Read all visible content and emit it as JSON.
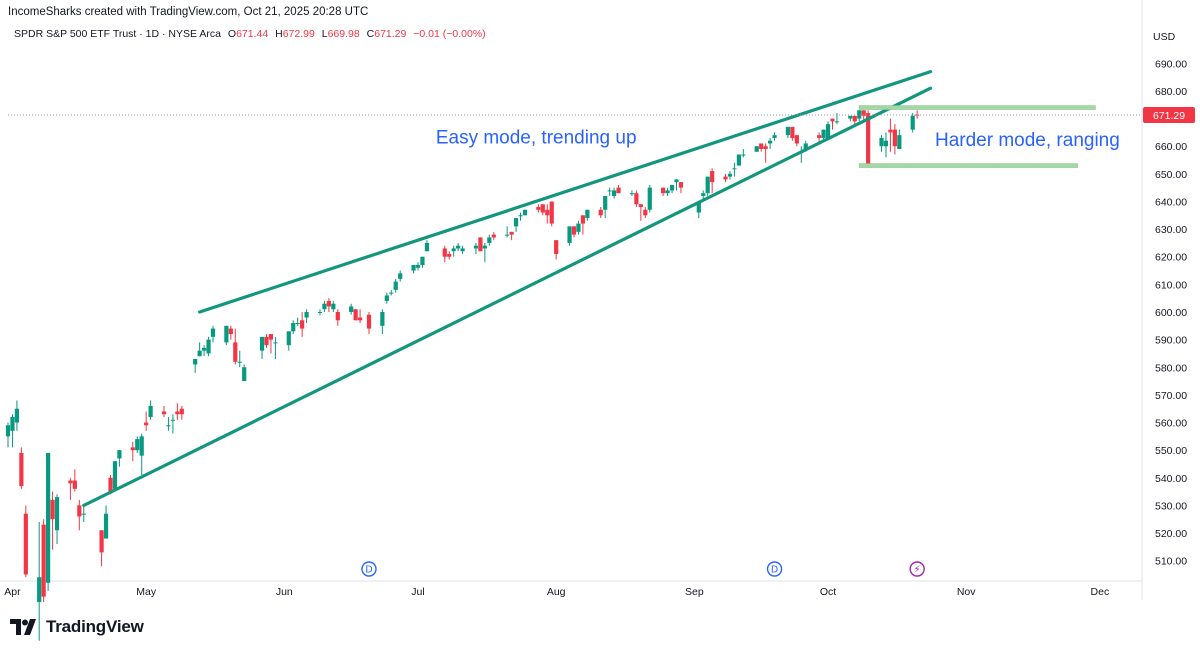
{
  "header": {
    "attribution": "IncomeSharks created with TradingView.com, Oct 21, 2025 20:28 UTC"
  },
  "legend": {
    "symbol": "SPDR S&P 500 ETF Trust · 1D · NYSE Arca",
    "open_label": "O",
    "open": "671.44",
    "high_label": "H",
    "high": "672.99",
    "low_label": "L",
    "low": "669.98",
    "close_label": "C",
    "close": "671.29",
    "change": "−0.01 (−0.00%)"
  },
  "currency": "USD",
  "footer": {
    "brand": "TradingView"
  },
  "colors": {
    "up": "#089981",
    "down": "#f23645",
    "trend": "#12967d",
    "range": "#a5d6a7",
    "annotation": "#2962ff",
    "price_tag": "#f23645"
  },
  "chart_data": {
    "type": "candlestick",
    "y_axis": {
      "range": [
        503,
        697
      ],
      "ticks": [
        510,
        520,
        530,
        540,
        550,
        560,
        570,
        580,
        590,
        600,
        610,
        620,
        630,
        640,
        650,
        660,
        670,
        680,
        690
      ]
    },
    "x_axis": {
      "range": [
        "2025-03-31",
        "2025-12-10"
      ],
      "labels": [
        {
          "label": "Apr",
          "date": "2025-04-01"
        },
        {
          "label": "May",
          "date": "2025-05-01"
        },
        {
          "label": "Jun",
          "date": "2025-06-01"
        },
        {
          "label": "Jul",
          "date": "2025-07-01"
        },
        {
          "label": "Aug",
          "date": "2025-08-01"
        },
        {
          "label": "Sep",
          "date": "2025-09-01"
        },
        {
          "label": "Oct",
          "date": "2025-10-01"
        },
        {
          "label": "Nov",
          "date": "2025-11-01"
        },
        {
          "label": "Dec",
          "date": "2025-12-01"
        }
      ]
    },
    "last_price": "671.29",
    "candles": [
      {
        "d": "2025-03-31",
        "o": 555,
        "h": 560,
        "l": 551,
        "c": 559
      },
      {
        "d": "2025-04-01",
        "o": 557,
        "h": 563,
        "l": 551,
        "c": 562
      },
      {
        "d": "2025-04-02",
        "o": 560,
        "h": 568,
        "l": 557,
        "c": 565
      },
      {
        "d": "2025-04-03",
        "o": 549,
        "h": 551,
        "l": 536,
        "c": 537
      },
      {
        "d": "2025-04-04",
        "o": 527,
        "h": 530,
        "l": 504,
        "c": 505
      },
      {
        "d": "2025-04-07",
        "o": 495,
        "h": 524,
        "l": 481,
        "c": 504
      },
      {
        "d": "2025-04-08",
        "o": 523,
        "h": 525,
        "l": 495,
        "c": 497
      },
      {
        "d": "2025-04-09",
        "o": 502,
        "h": 549,
        "l": 499,
        "c": 549
      },
      {
        "d": "2025-04-10",
        "o": 532,
        "h": 535,
        "l": 514,
        "c": 525
      },
      {
        "d": "2025-04-11",
        "o": 521,
        "h": 534,
        "l": 516,
        "c": 533
      },
      {
        "d": "2025-04-14",
        "o": 539,
        "h": 540,
        "l": 532,
        "c": 538
      },
      {
        "d": "2025-04-15",
        "o": 539,
        "h": 543,
        "l": 535,
        "c": 536
      },
      {
        "d": "2025-04-16",
        "o": 530,
        "h": 532,
        "l": 521,
        "c": 526
      },
      {
        "d": "2025-04-17",
        "o": 527,
        "h": 530,
        "l": 524,
        "c": 527
      },
      {
        "d": "2025-04-21",
        "o": 521,
        "h": 521,
        "l": 508,
        "c": 513
      },
      {
        "d": "2025-04-22",
        "o": 518,
        "h": 530,
        "l": 518,
        "c": 527
      },
      {
        "d": "2025-04-23",
        "o": 540,
        "h": 541,
        "l": 534,
        "c": 535
      },
      {
        "d": "2025-04-24",
        "o": 536,
        "h": 546,
        "l": 535,
        "c": 546
      },
      {
        "d": "2025-04-25",
        "o": 547,
        "h": 550,
        "l": 544,
        "c": 550
      },
      {
        "d": "2025-04-28",
        "o": 551,
        "h": 553,
        "l": 546,
        "c": 550
      },
      {
        "d": "2025-04-29",
        "o": 550,
        "h": 555,
        "l": 549,
        "c": 554
      },
      {
        "d": "2025-04-30",
        "o": 548,
        "h": 556,
        "l": 541,
        "c": 555
      },
      {
        "d": "2025-05-01",
        "o": 560,
        "h": 564,
        "l": 557,
        "c": 559
      },
      {
        "d": "2025-05-02",
        "o": 562,
        "h": 568,
        "l": 561,
        "c": 566
      },
      {
        "d": "2025-05-05",
        "o": 564,
        "h": 566,
        "l": 562,
        "c": 563
      },
      {
        "d": "2025-05-06",
        "o": 559,
        "h": 562,
        "l": 557,
        "c": 559
      },
      {
        "d": "2025-05-07",
        "o": 561,
        "h": 563,
        "l": 556,
        "c": 561
      },
      {
        "d": "2025-05-08",
        "o": 564,
        "h": 567,
        "l": 561,
        "c": 563
      },
      {
        "d": "2025-05-09",
        "o": 565,
        "h": 566,
        "l": 561,
        "c": 563
      },
      {
        "d": "2025-05-12",
        "o": 581,
        "h": 583,
        "l": 578,
        "c": 583
      },
      {
        "d": "2025-05-13",
        "o": 584,
        "h": 589,
        "l": 584,
        "c": 586
      },
      {
        "d": "2025-05-14",
        "o": 586,
        "h": 588,
        "l": 584,
        "c": 587
      },
      {
        "d": "2025-05-15",
        "o": 585,
        "h": 591,
        "l": 584,
        "c": 590
      },
      {
        "d": "2025-05-16",
        "o": 591,
        "h": 595,
        "l": 589,
        "c": 594
      },
      {
        "d": "2025-05-19",
        "o": 589,
        "h": 595,
        "l": 588,
        "c": 595
      },
      {
        "d": "2025-05-20",
        "o": 594,
        "h": 595,
        "l": 590,
        "c": 592
      },
      {
        "d": "2025-05-21",
        "o": 589,
        "h": 594,
        "l": 581,
        "c": 582
      },
      {
        "d": "2025-05-22",
        "o": 582,
        "h": 586,
        "l": 580,
        "c": 582
      },
      {
        "d": "2025-05-23",
        "o": 575,
        "h": 581,
        "l": 575,
        "c": 580
      },
      {
        "d": "2025-05-27",
        "o": 586,
        "h": 591,
        "l": 583,
        "c": 591
      },
      {
        "d": "2025-05-28",
        "o": 591,
        "h": 592,
        "l": 587,
        "c": 588
      },
      {
        "d": "2025-05-29",
        "o": 592,
        "h": 592,
        "l": 585,
        "c": 590
      },
      {
        "d": "2025-05-30",
        "o": 589,
        "h": 591,
        "l": 583,
        "c": 589
      },
      {
        "d": "2025-06-02",
        "o": 588,
        "h": 593,
        "l": 586,
        "c": 593
      },
      {
        "d": "2025-06-03",
        "o": 593,
        "h": 597,
        "l": 592,
        "c": 596
      },
      {
        "d": "2025-06-04",
        "o": 596,
        "h": 598,
        "l": 595,
        "c": 596
      },
      {
        "d": "2025-06-05",
        "o": 597,
        "h": 600,
        "l": 591,
        "c": 594
      },
      {
        "d": "2025-06-06",
        "o": 598,
        "h": 601,
        "l": 596,
        "c": 600
      },
      {
        "d": "2025-06-09",
        "o": 600,
        "h": 601,
        "l": 599,
        "c": 600
      },
      {
        "d": "2025-06-10",
        "o": 601,
        "h": 604,
        "l": 600,
        "c": 603
      },
      {
        "d": "2025-06-11",
        "o": 604,
        "h": 605,
        "l": 600,
        "c": 602
      },
      {
        "d": "2025-06-12",
        "o": 601,
        "h": 604,
        "l": 600,
        "c": 603
      },
      {
        "d": "2025-06-13",
        "o": 600,
        "h": 601,
        "l": 595,
        "c": 597
      },
      {
        "d": "2025-06-16",
        "o": 600,
        "h": 603,
        "l": 599,
        "c": 602
      },
      {
        "d": "2025-06-17",
        "o": 601,
        "h": 601,
        "l": 597,
        "c": 597
      },
      {
        "d": "2025-06-18",
        "o": 598,
        "h": 601,
        "l": 596,
        "c": 597
      },
      {
        "d": "2025-06-20",
        "o": 599,
        "h": 600,
        "l": 592,
        "c": 594
      },
      {
        "d": "2025-06-23",
        "o": 595,
        "h": 601,
        "l": 592,
        "c": 600
      },
      {
        "d": "2025-06-24",
        "o": 604,
        "h": 607,
        "l": 603,
        "c": 606
      },
      {
        "d": "2025-06-25",
        "o": 607,
        "h": 608,
        "l": 606,
        "c": 607
      },
      {
        "d": "2025-06-26",
        "o": 608,
        "h": 612,
        "l": 607,
        "c": 611
      },
      {
        "d": "2025-06-27",
        "o": 612,
        "h": 615,
        "l": 611,
        "c": 614
      },
      {
        "d": "2025-06-30",
        "o": 615,
        "h": 617,
        "l": 614,
        "c": 617
      },
      {
        "d": "2025-07-01",
        "o": 616,
        "h": 618,
        "l": 615,
        "c": 617
      },
      {
        "d": "2025-07-02",
        "o": 617,
        "h": 620,
        "l": 616,
        "c": 620
      },
      {
        "d": "2025-07-03",
        "o": 622,
        "h": 626,
        "l": 622,
        "c": 625
      },
      {
        "d": "2025-07-07",
        "o": 623,
        "h": 624,
        "l": 618,
        "c": 620
      },
      {
        "d": "2025-07-08",
        "o": 621,
        "h": 622,
        "l": 619,
        "c": 620
      },
      {
        "d": "2025-07-09",
        "o": 622,
        "h": 624,
        "l": 620,
        "c": 623
      },
      {
        "d": "2025-07-10",
        "o": 623,
        "h": 625,
        "l": 622,
        "c": 624
      },
      {
        "d": "2025-07-11",
        "o": 622,
        "h": 624,
        "l": 621,
        "c": 623
      },
      {
        "d": "2025-07-14",
        "o": 623,
        "h": 625,
        "l": 621,
        "c": 624
      },
      {
        "d": "2025-07-15",
        "o": 627,
        "h": 627,
        "l": 622,
        "c": 622
      },
      {
        "d": "2025-07-16",
        "o": 623,
        "h": 625,
        "l": 618,
        "c": 624
      },
      {
        "d": "2025-07-17",
        "o": 625,
        "h": 628,
        "l": 624,
        "c": 627
      },
      {
        "d": "2025-07-18",
        "o": 628,
        "h": 629,
        "l": 626,
        "c": 627
      },
      {
        "d": "2025-07-21",
        "o": 628,
        "h": 631,
        "l": 627,
        "c": 628
      },
      {
        "d": "2025-07-22",
        "o": 629,
        "h": 629,
        "l": 626,
        "c": 628
      },
      {
        "d": "2025-07-23",
        "o": 631,
        "h": 634,
        "l": 629,
        "c": 634
      },
      {
        "d": "2025-07-24",
        "o": 635,
        "h": 636,
        "l": 633,
        "c": 635
      },
      {
        "d": "2025-07-25",
        "o": 635,
        "h": 637,
        "l": 635,
        "c": 637
      },
      {
        "d": "2025-07-28",
        "o": 638,
        "h": 639,
        "l": 636,
        "c": 637
      },
      {
        "d": "2025-07-29",
        "o": 639,
        "h": 639,
        "l": 635,
        "c": 636
      },
      {
        "d": "2025-07-30",
        "o": 637,
        "h": 639,
        "l": 632,
        "c": 635
      },
      {
        "d": "2025-07-31",
        "o": 640,
        "h": 640,
        "l": 631,
        "c": 632
      },
      {
        "d": "2025-08-01",
        "o": 626,
        "h": 626,
        "l": 619,
        "c": 621
      },
      {
        "d": "2025-08-04",
        "o": 625,
        "h": 631,
        "l": 624,
        "c": 631
      },
      {
        "d": "2025-08-05",
        "o": 631,
        "h": 631,
        "l": 627,
        "c": 628
      },
      {
        "d": "2025-08-06",
        "o": 629,
        "h": 633,
        "l": 628,
        "c": 632
      },
      {
        "d": "2025-08-07",
        "o": 635,
        "h": 635,
        "l": 628,
        "c": 632
      },
      {
        "d": "2025-08-08",
        "o": 634,
        "h": 637,
        "l": 633,
        "c": 637
      },
      {
        "d": "2025-08-11",
        "o": 637,
        "h": 638,
        "l": 634,
        "c": 635
      },
      {
        "d": "2025-08-12",
        "o": 637,
        "h": 642,
        "l": 634,
        "c": 642
      },
      {
        "d": "2025-08-13",
        "o": 644,
        "h": 645,
        "l": 642,
        "c": 644
      },
      {
        "d": "2025-08-14",
        "o": 642,
        "h": 645,
        "l": 641,
        "c": 644
      },
      {
        "d": "2025-08-15",
        "o": 645,
        "h": 646,
        "l": 643,
        "c": 643
      },
      {
        "d": "2025-08-18",
        "o": 643,
        "h": 644,
        "l": 642,
        "c": 643
      },
      {
        "d": "2025-08-19",
        "o": 643,
        "h": 644,
        "l": 638,
        "c": 639
      },
      {
        "d": "2025-08-20",
        "o": 639,
        "h": 639,
        "l": 633,
        "c": 638
      },
      {
        "d": "2025-08-21",
        "o": 637,
        "h": 638,
        "l": 634,
        "c": 635
      },
      {
        "d": "2025-08-22",
        "o": 637,
        "h": 646,
        "l": 636,
        "c": 645
      },
      {
        "d": "2025-08-25",
        "o": 645,
        "h": 645,
        "l": 642,
        "c": 643
      },
      {
        "d": "2025-08-26",
        "o": 643,
        "h": 645,
        "l": 642,
        "c": 644
      },
      {
        "d": "2025-08-27",
        "o": 644,
        "h": 646,
        "l": 643,
        "c": 646
      },
      {
        "d": "2025-08-28",
        "o": 647,
        "h": 648,
        "l": 644,
        "c": 648
      },
      {
        "d": "2025-08-29",
        "o": 647,
        "h": 647,
        "l": 643,
        "c": 645
      },
      {
        "d": "2025-09-02",
        "o": 636,
        "h": 640,
        "l": 634,
        "c": 640
      },
      {
        "d": "2025-09-03",
        "o": 642,
        "h": 644,
        "l": 640,
        "c": 643
      },
      {
        "d": "2025-09-04",
        "o": 643,
        "h": 649,
        "l": 642,
        "c": 649
      },
      {
        "d": "2025-09-05",
        "o": 651,
        "h": 652,
        "l": 643,
        "c": 647
      },
      {
        "d": "2025-09-08",
        "o": 649,
        "h": 650,
        "l": 647,
        "c": 648
      },
      {
        "d": "2025-09-09",
        "o": 649,
        "h": 651,
        "l": 648,
        "c": 650
      },
      {
        "d": "2025-09-10",
        "o": 652,
        "h": 654,
        "l": 649,
        "c": 652
      },
      {
        "d": "2025-09-11",
        "o": 653,
        "h": 657,
        "l": 653,
        "c": 657
      },
      {
        "d": "2025-09-12",
        "o": 657,
        "h": 659,
        "l": 656,
        "c": 657
      },
      {
        "d": "2025-09-15",
        "o": 658,
        "h": 660,
        "l": 658,
        "c": 660
      },
      {
        "d": "2025-09-16",
        "o": 661,
        "h": 661,
        "l": 658,
        "c": 659
      },
      {
        "d": "2025-09-17",
        "o": 660,
        "h": 661,
        "l": 654,
        "c": 659
      },
      {
        "d": "2025-09-18",
        "o": 661,
        "h": 663,
        "l": 659,
        "c": 662
      },
      {
        "d": "2025-09-19",
        "o": 663,
        "h": 665,
        "l": 662,
        "c": 664
      },
      {
        "d": "2025-09-22",
        "o": 664,
        "h": 667,
        "l": 663,
        "c": 667
      },
      {
        "d": "2025-09-23",
        "o": 667,
        "h": 667,
        "l": 662,
        "c": 663
      },
      {
        "d": "2025-09-24",
        "o": 664,
        "h": 664,
        "l": 660,
        "c": 661
      },
      {
        "d": "2025-09-25",
        "o": 658,
        "h": 660,
        "l": 654,
        "c": 658
      },
      {
        "d": "2025-09-26",
        "o": 659,
        "h": 662,
        "l": 658,
        "c": 661
      },
      {
        "d": "2025-09-29",
        "o": 664,
        "h": 665,
        "l": 661,
        "c": 663
      },
      {
        "d": "2025-09-30",
        "o": 663,
        "h": 666,
        "l": 662,
        "c": 666
      },
      {
        "d": "2025-10-01",
        "o": 663,
        "h": 669,
        "l": 663,
        "c": 668
      },
      {
        "d": "2025-10-02",
        "o": 670,
        "h": 670,
        "l": 666,
        "c": 669
      },
      {
        "d": "2025-10-03",
        "o": 669,
        "h": 672,
        "l": 668,
        "c": 669
      },
      {
        "d": "2025-10-06",
        "o": 670,
        "h": 671,
        "l": 669,
        "c": 671
      },
      {
        "d": "2025-10-07",
        "o": 671,
        "h": 671,
        "l": 667,
        "c": 669
      },
      {
        "d": "2025-10-08",
        "o": 670,
        "h": 673,
        "l": 669,
        "c": 673
      },
      {
        "d": "2025-10-09",
        "o": 673,
        "h": 673,
        "l": 669,
        "c": 671
      },
      {
        "d": "2025-10-10",
        "o": 672,
        "h": 673,
        "l": 653,
        "c": 653
      },
      {
        "d": "2025-10-13",
        "o": 660,
        "h": 664,
        "l": 658,
        "c": 663
      },
      {
        "d": "2025-10-14",
        "o": 660,
        "h": 665,
        "l": 656,
        "c": 662
      },
      {
        "d": "2025-10-15",
        "o": 666,
        "h": 670,
        "l": 658,
        "c": 665
      },
      {
        "d": "2025-10-16",
        "o": 666,
        "h": 668,
        "l": 657,
        "c": 660
      },
      {
        "d": "2025-10-17",
        "o": 659,
        "h": 666,
        "l": 659,
        "c": 664
      },
      {
        "d": "2025-10-20",
        "o": 666,
        "h": 672,
        "l": 665,
        "c": 671
      },
      {
        "d": "2025-10-21",
        "o": 671.44,
        "h": 672.99,
        "l": 669.98,
        "c": 671.29
      }
    ],
    "trendlines": [
      {
        "name": "upper",
        "from": {
          "d": "2025-05-13",
          "p": 600
        },
        "to": {
          "d": "2025-10-24",
          "p": 687
        }
      },
      {
        "name": "lower",
        "from": {
          "d": "2025-04-17",
          "p": 530
        },
        "to": {
          "d": "2025-10-24",
          "p": 681
        }
      }
    ],
    "range_lines": [
      {
        "name": "range-top",
        "from": "2025-10-08",
        "to": "2025-11-30",
        "p": 674
      },
      {
        "name": "range-bottom",
        "from": "2025-10-08",
        "to": "2025-11-26",
        "p": 653
      }
    ],
    "annotations": [
      {
        "name": "easy-mode",
        "text": "Easy mode, trending up",
        "d": "2025-07-05",
        "p": 661
      },
      {
        "name": "harder-mode",
        "text": "Harder mode, ranging",
        "d": "2025-10-25",
        "p": 660
      }
    ],
    "event_markers": [
      {
        "name": "dividend-jun",
        "label": "D",
        "d": "2025-06-20"
      },
      {
        "name": "dividend-sep",
        "label": "D",
        "d": "2025-09-19"
      },
      {
        "name": "earnings-oct",
        "label": "⚡",
        "d": "2025-10-21"
      }
    ]
  }
}
